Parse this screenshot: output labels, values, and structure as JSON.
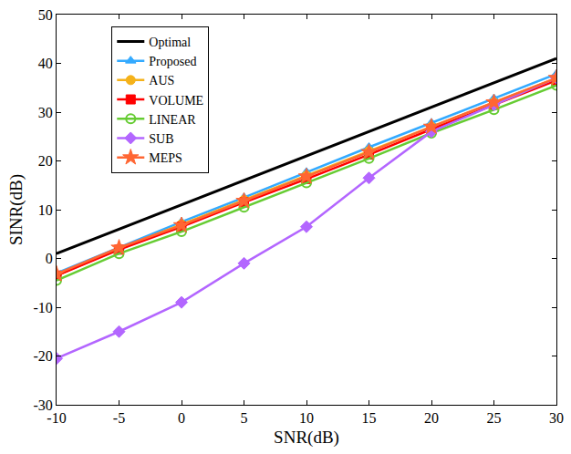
{
  "chart_data": {
    "type": "line",
    "x_label": "SNR(dB)",
    "y_label": "SINR(dB)",
    "x": [
      -10,
      -5,
      0,
      5,
      10,
      15,
      20,
      25,
      30
    ],
    "xlim": [
      -10,
      30
    ],
    "xticks": [
      -10,
      -5,
      0,
      5,
      10,
      15,
      20,
      25,
      30
    ],
    "ylim": [
      -30,
      50
    ],
    "yticks": [
      -30,
      -20,
      -10,
      0,
      10,
      20,
      30,
      40,
      50
    ],
    "grid": false,
    "legend": "upper left",
    "series": [
      {
        "name": "Optimal",
        "color": "#000000",
        "marker": "none",
        "values": [
          1,
          6,
          11,
          16,
          21,
          26,
          31,
          36,
          41
        ]
      },
      {
        "name": "Proposed",
        "color": "#33aaff",
        "marker": "triangle-up",
        "values": [
          -3,
          2.3,
          7.5,
          12.5,
          17.7,
          22.8,
          27.8,
          32.8,
          37.8
        ]
      },
      {
        "name": "AUS",
        "color": "#f5b21a",
        "marker": "circle",
        "values": [
          -3.5,
          2,
          7,
          12,
          17,
          22,
          27,
          32,
          37
        ]
      },
      {
        "name": "VOLUME",
        "color": "#ff0000",
        "marker": "square",
        "values": [
          -3.5,
          1.8,
          6.5,
          11.5,
          16.3,
          21.3,
          26.5,
          31.5,
          36.5
        ]
      },
      {
        "name": "LINEAR",
        "color": "#66cc33",
        "marker": "circle-open",
        "values": [
          -4.5,
          1,
          5.5,
          10.5,
          15.5,
          20.5,
          25.7,
          30.5,
          35.5
        ]
      },
      {
        "name": "SUB",
        "color": "#b366ff",
        "marker": "diamond",
        "values": [
          -20.5,
          -15,
          -9,
          -1,
          6.5,
          16.5,
          26,
          31.5,
          37
        ]
      },
      {
        "name": "MEPS",
        "color": "#ff6633",
        "marker": "star",
        "values": [
          -3.2,
          2.2,
          6.8,
          11.8,
          16.8,
          21.8,
          27,
          32,
          37
        ]
      }
    ]
  }
}
